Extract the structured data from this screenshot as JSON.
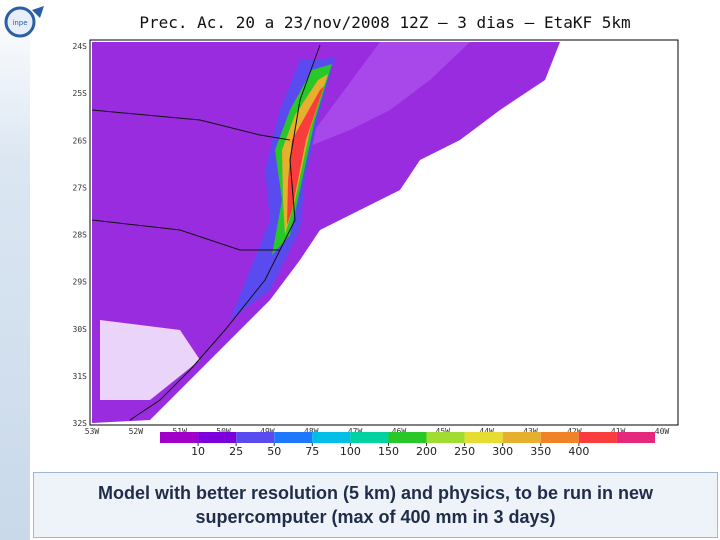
{
  "title": "Prec. Ac. 20 a 23/nov/2008 12Z – 3 dias – EtaKF 5km",
  "lat_labels": [
    "24S",
    "25S",
    "26S",
    "27S",
    "28S",
    "29S",
    "30S",
    "31S",
    "32S"
  ],
  "lon_labels": [
    "53W",
    "52W",
    "51W",
    "50W",
    "49W",
    "48W",
    "47W",
    "46W",
    "45W",
    "44W",
    "43W",
    "42W",
    "41W",
    "40W"
  ],
  "colorbar": {
    "ticks": [
      10,
      25,
      50,
      75,
      100,
      150,
      200,
      250,
      300,
      350,
      400
    ],
    "colors": [
      "#a000c8",
      "#7d00dc",
      "#5a4bf0",
      "#1e78ff",
      "#00bee6",
      "#00d2a0",
      "#28c828",
      "#a0dc32",
      "#e6dc32",
      "#e6af2d",
      "#f08228",
      "#fa3c3c",
      "#e6287d"
    ]
  },
  "caption": [
    "Model with better resolution (5 km) and physics, to be run in new",
    "supercomputer (max of 400 mm in 3 days)"
  ]
}
